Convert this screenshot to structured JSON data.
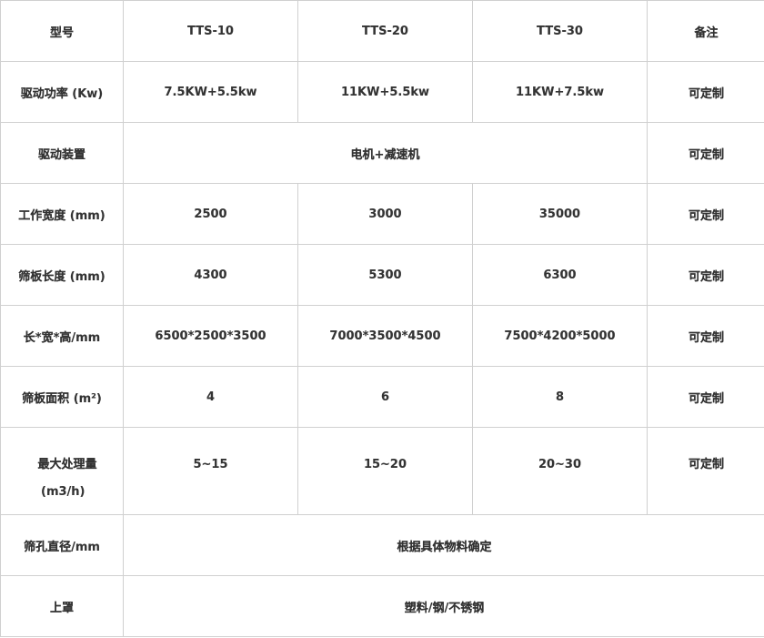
{
  "header": [
    "型号",
    "TTS-10",
    "TTS-20",
    "TTS-30",
    "备注"
  ],
  "rows": [
    {
      "label": "驱动功率 (Kw)",
      "cells": [
        "7.5KW+5.5kw",
        "11KW+5.5kw",
        "11KW+7.5kw"
      ],
      "note": "可定制"
    },
    {
      "label": "驱动装置",
      "merged": "电机+减速机",
      "note": "可定制"
    },
    {
      "label": "工作宽度 (mm)",
      "cells": [
        "2500",
        "3000",
        "35000"
      ],
      "note": "可定制"
    },
    {
      "label": "筛板长度 (mm)",
      "cells": [
        "4300",
        "5300",
        "6300"
      ],
      "note": "可定制"
    },
    {
      "label": "长*宽*高/mm",
      "cells": [
        "6500*2500*3500",
        "7000*3500*4500",
        "7500*4200*5000"
      ],
      "note": "可定制"
    },
    {
      "label": "筛板面积 (m²)",
      "cells": [
        "4",
        "6",
        "8"
      ],
      "note": "可定制"
    },
    {
      "label": "最大处理量",
      "label2": "(m3/h)",
      "cells": [
        "5~15",
        "15~20",
        "20~30"
      ],
      "note": "可定制"
    },
    {
      "label": "筛孔直径/mm",
      "merged": "根据具体物料确定"
    },
    {
      "label": "上罩",
      "merged": "塑料/钢/不锈钢"
    }
  ]
}
